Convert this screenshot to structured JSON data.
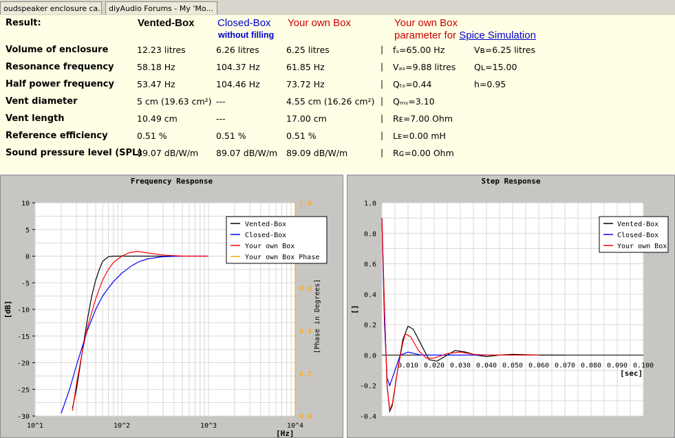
{
  "tabs": [
    {
      "label": "oudspeaker enclosure ca..."
    },
    {
      "label": "diyAudio Forums - My 'Mo..."
    }
  ],
  "result": {
    "title": "Result:",
    "col_vented": "Vented-Box",
    "col_closed": "Closed-Box",
    "col_closed_sub": "without filling",
    "col_own": "Your own Box",
    "col_spice1": "Your own Box",
    "col_spice2": "parameter for",
    "col_spice_link": "Spice Simulation",
    "rows": [
      {
        "label": "Volume of enclosure",
        "vented": "12.23 litres",
        "closed": "6.26 litres",
        "own": "6.25 litres",
        "sep": "|"
      },
      {
        "label": "Resonance frequency",
        "vented": "58.18 Hz",
        "closed": "104.37 Hz",
        "own": "61.85 Hz",
        "sep": "|"
      },
      {
        "label": "Half power frequency",
        "vented": "53.47 Hz",
        "closed": "104.46 Hz",
        "own": "73.72 Hz",
        "sep": "|"
      },
      {
        "label": "Vent diameter",
        "vented": "5 cm (19.63 cm²)",
        "closed": "---",
        "own": "4.55 cm (16.26 cm²)",
        "sep": "|"
      },
      {
        "label": "Vent length",
        "vented": "10.49 cm",
        "closed": "---",
        "own": "17.00 cm",
        "sep": "|"
      },
      {
        "label": "Reference efficiency",
        "vented": "0.51 %",
        "closed": "0.51 %",
        "own": "0.51 %",
        "sep": "|"
      },
      {
        "label": "Sound pressure level (SPL)",
        "vented": "89.07 dB/W/m",
        "closed": "89.07 dB/W/m",
        "own": "89.09 dB/W/m",
        "sep": "|"
      }
    ],
    "spice": [
      {
        "a": "fₛ=65.00 Hz",
        "b": "Vʙ=6.25 litres"
      },
      {
        "a": "Vₐₛ=9.88 litres",
        "b": "Qʟ=15.00"
      },
      {
        "a": "Qₜₛ=0.44",
        "b": "h=0.95"
      },
      {
        "a": "Qₘₛ=3.10",
        "b": ""
      },
      {
        "a": "Rᴇ=7.00 Ohm",
        "b": ""
      },
      {
        "a": "Lᴇ=0.00 mH",
        "b": ""
      },
      {
        "a": "Rɢ=0.00 Ohm",
        "b": ""
      }
    ]
  },
  "colors": {
    "vented": "#000000",
    "closed": "#0000ff",
    "own": "#ff0000",
    "phase": "#ffa500"
  },
  "chart_data": [
    {
      "type": "line",
      "title": "Frequency Response",
      "xlabel": "[Hz]",
      "ylabel": "[dB]",
      "y2label": "[Phase in Degrees]",
      "x_scale": "log",
      "xlim": [
        10,
        10000
      ],
      "ylim": [
        -30,
        10
      ],
      "y2lim": [
        0,
        1
      ],
      "xticks": [
        "10^1",
        "10^2",
        "10^3",
        "10^4"
      ],
      "yticks": [
        "10",
        "5",
        "0",
        "-5",
        "-10",
        "-15",
        "-20",
        "-25",
        "-30"
      ],
      "y2ticks": [
        "1.0",
        "0.8",
        "0.6",
        "0.4",
        "0.2",
        "0.0"
      ],
      "grid": true,
      "legend_position": "top-right",
      "series": [
        {
          "name": "Vented-Box",
          "x": [
            27,
            30,
            35,
            40,
            45,
            50,
            55,
            60,
            70,
            80,
            100,
            200,
            500
          ],
          "y": [
            -28.5,
            -25,
            -18,
            -12,
            -7.5,
            -4.5,
            -2.5,
            -1,
            -0.1,
            0,
            0,
            0,
            0
          ]
        },
        {
          "name": "Closed-Box",
          "x": [
            20,
            25,
            30,
            40,
            50,
            60,
            70,
            80,
            100,
            130,
            160,
            200,
            300,
            500,
            1000
          ],
          "y": [
            -29.5,
            -25,
            -20.5,
            -14,
            -10,
            -7.5,
            -6,
            -4.8,
            -3.2,
            -1.8,
            -1,
            -0.5,
            -0.1,
            0,
            0
          ]
        },
        {
          "name": "Your own Box",
          "x": [
            27,
            30,
            35,
            40,
            50,
            60,
            70,
            80,
            100,
            120,
            150,
            200,
            300,
            500,
            1000
          ],
          "y": [
            -29,
            -24,
            -18,
            -13.5,
            -8,
            -4.5,
            -2.5,
            -1.2,
            0,
            0.6,
            0.9,
            0.6,
            0.2,
            0,
            0
          ]
        },
        {
          "name": "Your own Box Phase",
          "x": [],
          "y": []
        }
      ]
    },
    {
      "type": "line",
      "title": "Step Response",
      "xlabel": "[sec]",
      "ylabel": "[]",
      "xlim": [
        0,
        0.1
      ],
      "ylim": [
        -0.4,
        1.0
      ],
      "xticks": [
        "0.010",
        "0.020",
        "0.030",
        "0.040",
        "0.050",
        "0.060",
        "0.070",
        "0.080",
        "0.090",
        "0.100"
      ],
      "yticks": [
        "1.0",
        "0.8",
        "0.6",
        "0.4",
        "0.2",
        "0.0",
        "-0.2",
        "-0.4"
      ],
      "grid": true,
      "legend_position": "top-right",
      "series": [
        {
          "name": "Vented-Box",
          "x": [
            0,
            0.001,
            0.002,
            0.003,
            0.004,
            0.006,
            0.008,
            0.01,
            0.012,
            0.015,
            0.018,
            0.021,
            0.025,
            0.028,
            0.032,
            0.036,
            0.04,
            0.045,
            0.05,
            0.06,
            0.07
          ],
          "y": [
            0.9,
            0.3,
            -0.2,
            -0.37,
            -0.33,
            -0.1,
            0.1,
            0.19,
            0.17,
            0.07,
            -0.03,
            -0.04,
            0.0,
            0.03,
            0.02,
            0.0,
            -0.01,
            0.0,
            0.005,
            0.0,
            0.0
          ]
        },
        {
          "name": "Closed-Box",
          "x": [
            0,
            0.001,
            0.002,
            0.003,
            0.005,
            0.007,
            0.01,
            0.015,
            0.02,
            0.03,
            0.05
          ],
          "y": [
            0.9,
            0.2,
            -0.15,
            -0.2,
            -0.1,
            0.0,
            0.02,
            0.0,
            0.0,
            0.0,
            0.0
          ]
        },
        {
          "name": "Your own Box",
          "x": [
            0,
            0.001,
            0.002,
            0.003,
            0.004,
            0.006,
            0.008,
            0.009,
            0.011,
            0.014,
            0.017,
            0.02,
            0.025,
            0.03,
            0.035,
            0.04,
            0.05,
            0.06
          ],
          "y": [
            0.9,
            0.3,
            -0.2,
            -0.36,
            -0.32,
            -0.1,
            0.08,
            0.14,
            0.12,
            0.03,
            -0.02,
            -0.02,
            0.01,
            0.02,
            0.005,
            0.0,
            0.0,
            0.0
          ]
        }
      ]
    }
  ]
}
